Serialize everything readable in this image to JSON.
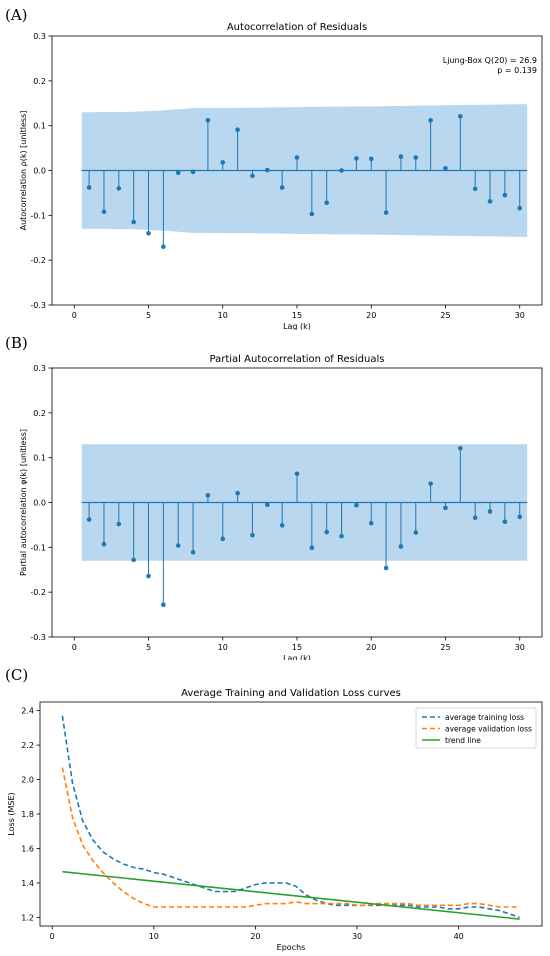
{
  "panels": {
    "a": "(A)",
    "b": "(B)",
    "c": "(C)"
  },
  "chart_data": [
    {
      "type": "stem",
      "title": "Autocorrelation of Residuals",
      "xlabel": "Lag (k)",
      "ylabel": "Autocorrelation ρ(k) [unitless]",
      "xlim": [
        -1.5,
        31.5
      ],
      "ylim": [
        -0.3,
        0.3
      ],
      "xticks": [
        0,
        5,
        10,
        15,
        20,
        25,
        30
      ],
      "yticks": [
        -0.3,
        -0.2,
        -0.1,
        0.0,
        0.1,
        0.2,
        0.3
      ],
      "annotation": [
        "Ljung-Box Q(20) = 26.9",
        "p = 0.139"
      ],
      "x": [
        1,
        2,
        3,
        4,
        5,
        6,
        7,
        8,
        9,
        10,
        11,
        12,
        13,
        14,
        15,
        16,
        17,
        18,
        19,
        20,
        21,
        22,
        23,
        24,
        25,
        26,
        27,
        28,
        29,
        30
      ],
      "values": [
        -0.038,
        -0.092,
        -0.04,
        -0.115,
        -0.14,
        -0.17,
        -0.005,
        -0.003,
        0.112,
        0.018,
        0.091,
        -0.012,
        0.001,
        -0.038,
        0.029,
        -0.097,
        -0.072,
        0.0,
        0.027,
        0.026,
        -0.094,
        0.031,
        0.029,
        0.112,
        0.005,
        0.121,
        -0.041,
        -0.069,
        -0.055,
        -0.084
      ],
      "confidence_band": {
        "x": [
          0.5,
          4,
          6,
          8,
          12,
          16,
          20,
          24,
          28,
          30.5
        ],
        "upper": [
          0.13,
          0.131,
          0.134,
          0.139,
          0.14,
          0.142,
          0.143,
          0.145,
          0.147,
          0.148
        ],
        "lower": [
          -0.13,
          -0.131,
          -0.134,
          -0.139,
          -0.14,
          -0.142,
          -0.143,
          -0.145,
          -0.147,
          -0.148
        ]
      },
      "colors": {
        "stem": "#1f77b4",
        "band": "#b9d7ee",
        "zero": "#1f77b4"
      }
    },
    {
      "type": "stem",
      "title": "Partial Autocorrelation of Residuals",
      "xlabel": "Lag (k)",
      "ylabel": "Partial autocorrelation φ(k) [unitless]",
      "xlim": [
        -1.5,
        31.5
      ],
      "ylim": [
        -0.3,
        0.3
      ],
      "xticks": [
        0,
        5,
        10,
        15,
        20,
        25,
        30
      ],
      "yticks": [
        -0.3,
        -0.2,
        -0.1,
        0.0,
        0.1,
        0.2,
        0.3
      ],
      "x": [
        1,
        2,
        3,
        4,
        5,
        6,
        7,
        8,
        9,
        10,
        11,
        12,
        13,
        14,
        15,
        16,
        17,
        18,
        19,
        20,
        21,
        22,
        23,
        24,
        25,
        26,
        27,
        28,
        29,
        30
      ],
      "values": [
        -0.038,
        -0.093,
        -0.048,
        -0.128,
        -0.164,
        -0.228,
        -0.096,
        -0.111,
        0.016,
        -0.081,
        0.021,
        -0.073,
        -0.005,
        -0.051,
        0.064,
        -0.101,
        -0.066,
        -0.075,
        -0.006,
        -0.046,
        -0.146,
        -0.098,
        -0.067,
        0.042,
        -0.012,
        0.121,
        -0.034,
        -0.02,
        -0.043,
        -0.032
      ],
      "confidence_band": {
        "x": [
          0.5,
          30.5
        ],
        "upper": [
          0.13,
          0.13
        ],
        "lower": [
          -0.13,
          -0.13
        ]
      },
      "colors": {
        "stem": "#1f77b4",
        "band": "#b9d7ee",
        "zero": "#1f77b4"
      }
    },
    {
      "type": "line",
      "title": "Average Training and Validation Loss curves",
      "xlabel": "Epochs",
      "ylabel": "Loss (MSE)",
      "xlim": [
        -1.2,
        48.2
      ],
      "ylim": [
        1.15,
        2.45
      ],
      "xticks": [
        0,
        10,
        20,
        30,
        40
      ],
      "yticks": [
        1.2,
        1.4,
        1.6,
        1.8,
        2.0,
        2.2,
        2.4
      ],
      "legend_position": "top-right",
      "series": [
        {
          "name": "average training loss",
          "color": "#1f77b4",
          "style": "dashed",
          "x": [
            1,
            2,
            3,
            4,
            5,
            6,
            7,
            8,
            9,
            10,
            11,
            12,
            13,
            14,
            15,
            16,
            17,
            18,
            19,
            20,
            21,
            22,
            23,
            24,
            25,
            26,
            27,
            28,
            29,
            30,
            31,
            32,
            33,
            34,
            35,
            36,
            37,
            38,
            39,
            40,
            41,
            42,
            43,
            44,
            45,
            46
          ],
          "values": [
            2.37,
            1.98,
            1.76,
            1.65,
            1.58,
            1.54,
            1.51,
            1.49,
            1.48,
            1.46,
            1.45,
            1.43,
            1.41,
            1.39,
            1.37,
            1.35,
            1.35,
            1.35,
            1.37,
            1.39,
            1.4,
            1.4,
            1.4,
            1.38,
            1.33,
            1.3,
            1.28,
            1.27,
            1.27,
            1.27,
            1.27,
            1.27,
            1.27,
            1.27,
            1.27,
            1.26,
            1.26,
            1.26,
            1.25,
            1.25,
            1.26,
            1.26,
            1.25,
            1.24,
            1.22,
            1.2
          ]
        },
        {
          "name": "average validation loss",
          "color": "#ff7f0e",
          "style": "dashed",
          "x": [
            1,
            2,
            3,
            4,
            5,
            6,
            7,
            8,
            9,
            10,
            11,
            12,
            13,
            14,
            15,
            16,
            17,
            18,
            19,
            20,
            21,
            22,
            23,
            24,
            25,
            26,
            27,
            28,
            29,
            30,
            31,
            32,
            33,
            34,
            35,
            36,
            37,
            38,
            39,
            40,
            41,
            42,
            43,
            44,
            45,
            46
          ],
          "values": [
            2.07,
            1.78,
            1.62,
            1.53,
            1.46,
            1.4,
            1.35,
            1.31,
            1.28,
            1.26,
            1.26,
            1.26,
            1.26,
            1.26,
            1.26,
            1.26,
            1.26,
            1.26,
            1.26,
            1.27,
            1.28,
            1.28,
            1.28,
            1.29,
            1.28,
            1.28,
            1.28,
            1.28,
            1.28,
            1.27,
            1.27,
            1.28,
            1.28,
            1.28,
            1.28,
            1.27,
            1.27,
            1.27,
            1.27,
            1.27,
            1.28,
            1.28,
            1.27,
            1.26,
            1.26,
            1.26
          ]
        },
        {
          "name": "trend line",
          "color": "#2ca02c",
          "style": "solid",
          "x": [
            1,
            46
          ],
          "values": [
            1.465,
            1.19
          ]
        }
      ]
    }
  ]
}
